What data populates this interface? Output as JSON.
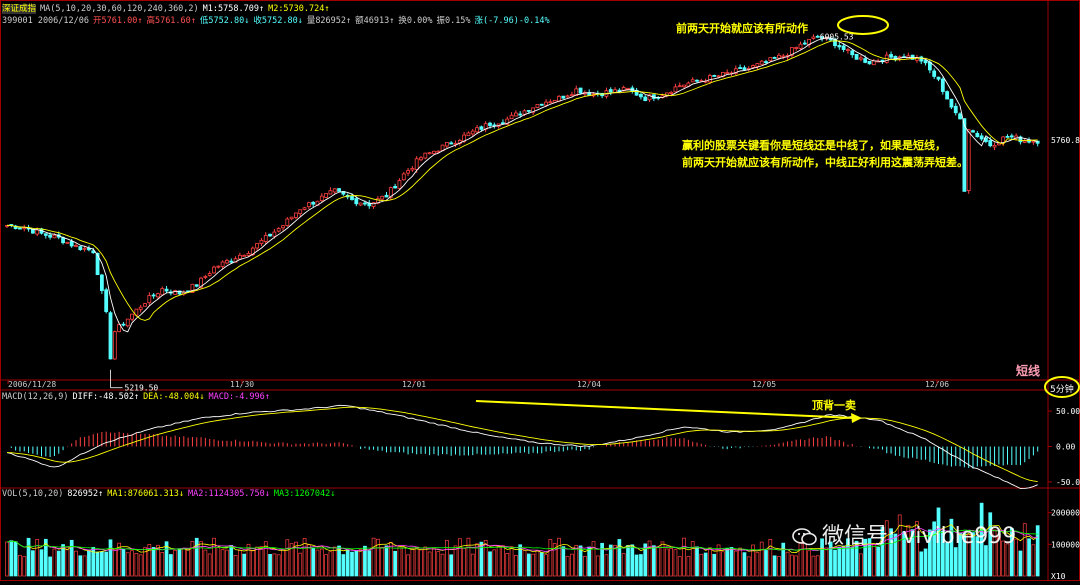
{
  "header": {
    "index_name": "深证成指",
    "ma_label": "MA(5,10,20,30,60,120,240,360,2)",
    "m1": "M1:5758.709↑",
    "m2": "M2:5730.724↑",
    "code_date": "399001 2006/12/06",
    "open": "开5761.00↑",
    "high": "高5761.60↑",
    "low": "低5752.80↓",
    "close": "收5752.80↓",
    "volume": "量826952↑",
    "amount": "额46913↑",
    "turnover": "换0.00%",
    "amplitude": "振0.15%",
    "change": "涨(-7.96)-0.14%"
  },
  "annotations": {
    "top_note": "前两天开始就应该有所动作",
    "side_note_1": "赢利的股票关键看你是短线还是中线了，如果是短线，",
    "side_note_2": "前两天开始就应该有所动作，中线正好利用这震荡弄短差。",
    "macd_note": "顶背一卖",
    "period_label": "短线",
    "timeframe": "5分钟"
  },
  "price_labels": {
    "peak": "6005.53",
    "low": "5219.50",
    "last": "5760.8"
  },
  "date_labels": [
    "2006/11/28",
    "11/30",
    "12/01",
    "12/04",
    "12/05",
    "12/06"
  ],
  "macd_header": {
    "name": "MACD(12,26,9)",
    "diff": "DIFF:-48.502↑",
    "dea": "DEA:-48.004↓",
    "macd": "MACD:-4.996↑"
  },
  "macd_axis": [
    "50.00",
    "0.00",
    "-50.00"
  ],
  "vol_header": {
    "name": "VOL(5,10,20)",
    "vol": "826952↑",
    "ma1": "MA1:876061.313↓",
    "ma2": "MA2:1124305.750↓",
    "ma3": "MA3:1267042↓"
  },
  "vol_axis": [
    "200000",
    "100000",
    "X10"
  ],
  "watermark": "微信号: vivible999",
  "colors": {
    "up": "#ff4040",
    "down": "#54ffff",
    "ma_white": "#ffffff",
    "ma_yellow": "#ffff00",
    "frame": "#a00000",
    "annotation": "#ffff00"
  },
  "chart_data": {
    "type": "candlestick",
    "x_labels": [
      "2006/11/28",
      "11/30",
      "12/01",
      "12/04",
      "12/05",
      "12/06"
    ],
    "close_path": [
      [
        0,
        5560
      ],
      [
        2,
        5555
      ],
      [
        4,
        5540
      ],
      [
        6,
        5530
      ],
      [
        8,
        5510
      ],
      [
        10,
        5500
      ],
      [
        12,
        5300
      ],
      [
        14,
        5340
      ],
      [
        16,
        5380
      ],
      [
        18,
        5410
      ],
      [
        20,
        5400
      ],
      [
        22,
        5420
      ],
      [
        24,
        5460
      ],
      [
        26,
        5480
      ],
      [
        28,
        5500
      ],
      [
        30,
        5530
      ],
      [
        32,
        5560
      ],
      [
        34,
        5600
      ],
      [
        36,
        5620
      ],
      [
        38,
        5640
      ],
      [
        40,
        5620
      ],
      [
        42,
        5610
      ],
      [
        44,
        5630
      ],
      [
        46,
        5680
      ],
      [
        48,
        5720
      ],
      [
        50,
        5740
      ],
      [
        52,
        5760
      ],
      [
        54,
        5780
      ],
      [
        56,
        5800
      ],
      [
        58,
        5810
      ],
      [
        60,
        5830
      ],
      [
        62,
        5850
      ],
      [
        64,
        5860
      ],
      [
        66,
        5880
      ],
      [
        68,
        5870
      ],
      [
        70,
        5875
      ],
      [
        72,
        5880
      ],
      [
        74,
        5860
      ],
      [
        76,
        5870
      ],
      [
        78,
        5890
      ],
      [
        80,
        5900
      ],
      [
        82,
        5910
      ],
      [
        84,
        5920
      ],
      [
        86,
        5930
      ],
      [
        88,
        5945
      ],
      [
        90,
        5960
      ],
      [
        92,
        5985
      ],
      [
        94,
        6005
      ],
      [
        96,
        5990
      ],
      [
        98,
        5960
      ],
      [
        100,
        5945
      ],
      [
        102,
        5955
      ],
      [
        104,
        5960
      ],
      [
        106,
        5950
      ],
      [
        108,
        5900
      ],
      [
        110,
        5820
      ],
      [
        112,
        5780
      ],
      [
        114,
        5750
      ],
      [
        116,
        5770
      ],
      [
        118,
        5760
      ]
    ],
    "peak": 6005.53,
    "trough": 5219.5,
    "last": 5760.8,
    "macd": {
      "axis_ticks": [
        50,
        0,
        -50
      ],
      "diff_path": [
        [
          0,
          -8
        ],
        [
          10,
          -30
        ],
        [
          20,
          5
        ],
        [
          30,
          25
        ],
        [
          40,
          40
        ],
        [
          50,
          48
        ],
        [
          60,
          52
        ],
        [
          70,
          58
        ],
        [
          80,
          45
        ],
        [
          90,
          30
        ],
        [
          100,
          15
        ],
        [
          110,
          5
        ],
        [
          120,
          0
        ],
        [
          130,
          12
        ],
        [
          140,
          28
        ],
        [
          150,
          20
        ],
        [
          160,
          25
        ],
        [
          170,
          45
        ],
        [
          180,
          38
        ],
        [
          190,
          10
        ],
        [
          200,
          -30
        ],
        [
          210,
          -60
        ],
        [
          214,
          -52
        ]
      ],
      "divergence_line": {
        "from": [
          70,
          60
        ],
        "to": [
          170,
          40
        ]
      }
    },
    "volume": {
      "axis_ticks": [
        200000,
        100000
      ],
      "last": 826952,
      "ma1": 876061.313,
      "ma2": 1124305.75,
      "ma3": 1267042
    }
  }
}
